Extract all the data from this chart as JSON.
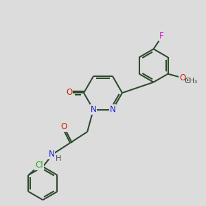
{
  "background_color": "#dcdcdc",
  "line_color": "#2d4a2d",
  "bond_width": 1.5,
  "atom_colors": {
    "N": "#1a1aee",
    "O": "#cc2200",
    "Cl": "#22aa22",
    "F": "#cc22cc",
    "H": "#444444",
    "C": "#2d4a2d"
  },
  "font_size": 8.5
}
